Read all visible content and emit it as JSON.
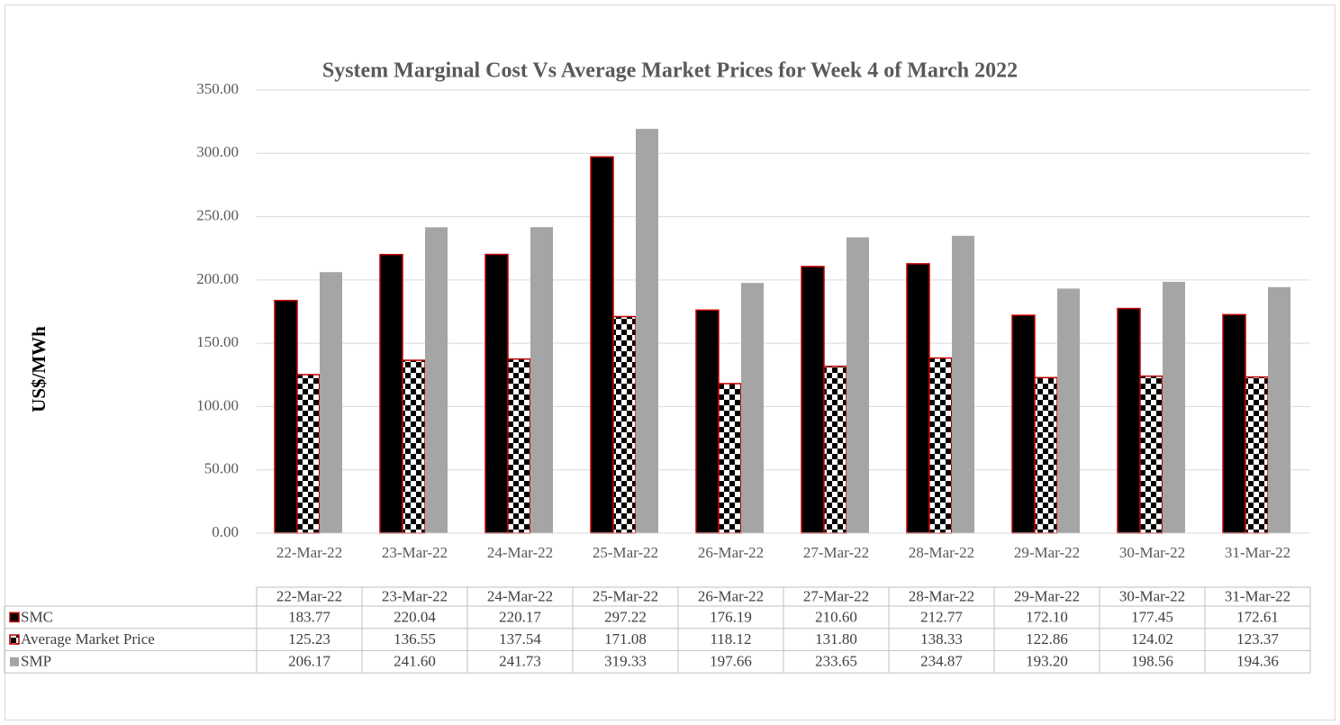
{
  "chart_data": {
    "type": "bar",
    "title": "System Marginal Cost Vs Average Market Prices for Week 4 of March 2022",
    "y_label": "US$/MWh",
    "categories": [
      "22-Mar-22",
      "23-Mar-22",
      "24-Mar-22",
      "25-Mar-22",
      "26-Mar-22",
      "27-Mar-22",
      "28-Mar-22",
      "29-Mar-22",
      "30-Mar-22",
      "31-Mar-22"
    ],
    "series": [
      {
        "name": "SMC",
        "color": "#000000",
        "edgecolor": "#c00000",
        "values": [
          183.77,
          220.04,
          220.17,
          297.22,
          176.19,
          210.6,
          212.77,
          172.1,
          177.45,
          172.61
        ],
        "value_labels": [
          "183.77",
          "220.04",
          "220.17",
          "297.22",
          "176.19",
          "210.60",
          "212.77",
          "172.10",
          "177.45",
          "172.61"
        ]
      },
      {
        "name": "Average Market Price",
        "color": "#000000",
        "pattern": "checker",
        "edgecolor": "#c00000",
        "values": [
          125.23,
          136.55,
          137.54,
          171.08,
          118.12,
          131.8,
          138.33,
          122.86,
          124.02,
          123.37
        ],
        "value_labels": [
          "125.23",
          "136.55",
          "137.54",
          "171.08",
          "118.12",
          "131.80",
          "138.33",
          "122.86",
          "124.02",
          "123.37"
        ]
      },
      {
        "name": "SMP",
        "color": "#a5a5a5",
        "values": [
          206.17,
          241.6,
          241.73,
          319.33,
          197.66,
          233.65,
          234.87,
          193.2,
          198.56,
          194.36
        ],
        "value_labels": [
          "206.17",
          "241.60",
          "241.73",
          "319.33",
          "197.66",
          "233.65",
          "234.87",
          "193.20",
          "198.56",
          "194.36"
        ]
      }
    ],
    "ylim": [
      0,
      350
    ],
    "yticks": [
      {
        "value": 0,
        "label": "0.00"
      },
      {
        "value": 50,
        "label": "50.00"
      },
      {
        "value": 100,
        "label": "100.00"
      },
      {
        "value": 150,
        "label": "150.00"
      },
      {
        "value": 200,
        "label": "200.00"
      },
      {
        "value": 250,
        "label": "250.00"
      },
      {
        "value": 300,
        "label": "300.00"
      },
      {
        "value": 350,
        "label": "350.00"
      }
    ],
    "grid": true,
    "data_table": true
  }
}
